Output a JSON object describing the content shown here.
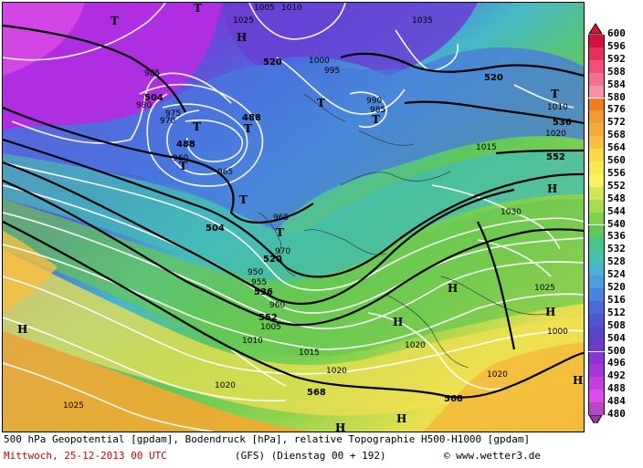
{
  "caption": {
    "line1": "500 hPa Geopotential [gpdam], Bodendruck [hPa], relative Topographie H500-H1000 [gpdam]",
    "date": "Mittwoch, 25-12-2013  00 UTC",
    "model": "(GFS)  (Dienstag 00 + 192)",
    "credit": "© www.wetter3.de"
  },
  "legend": {
    "values": [
      "600",
      "596",
      "592",
      "588",
      "584",
      "580",
      "576",
      "572",
      "568",
      "564",
      "560",
      "556",
      "552",
      "548",
      "544",
      "540",
      "536",
      "532",
      "528",
      "524",
      "520",
      "516",
      "512",
      "508",
      "504",
      "500",
      "496",
      "492",
      "488",
      "484",
      "480"
    ],
    "colors": [
      "#d2143c",
      "#e8305a",
      "#f05078",
      "#f4708c",
      "#f890a6",
      "#ee7d1e",
      "#f29a2a",
      "#f4aa34",
      "#f8c03c",
      "#fad846",
      "#f6ea50",
      "#fcf25a",
      "#cfe85a",
      "#a8dc50",
      "#7ed24e",
      "#5ec85a",
      "#48c488",
      "#44c2ae",
      "#48b4d0",
      "#4a9ee0",
      "#4a82e0",
      "#4a6ad8",
      "#4e56d2",
      "#5646cc",
      "#6c3ccc",
      "#8a34d4",
      "#a636dc",
      "#c63ee0",
      "#dc4ce8",
      "#b646c4",
      "#8c3aa8"
    ]
  },
  "map": {
    "geopotential_labels": [
      "520",
      "504",
      "488",
      "488",
      "504",
      "520",
      "536",
      "552",
      "568",
      "568",
      "520",
      "536",
      "552"
    ],
    "pressure_labels": [
      "1005",
      "1010",
      "1000",
      "995",
      "985",
      "980",
      "975",
      "970",
      "960",
      "985",
      "990",
      "965",
      "965",
      "970",
      "950",
      "955",
      "960",
      "1005",
      "1010",
      "1015",
      "1020",
      "1025",
      "1030",
      "1025",
      "1020",
      "1000",
      "1020",
      "1025",
      "1035",
      "1010",
      "1020",
      "1015",
      "1020"
    ],
    "highs": [
      "H",
      "H",
      "H",
      "H",
      "H",
      "H",
      "H",
      "H",
      "H"
    ],
    "lows": [
      "T",
      "T",
      "T",
      "T",
      "T",
      "T",
      "T",
      "T",
      "T",
      "T"
    ]
  }
}
